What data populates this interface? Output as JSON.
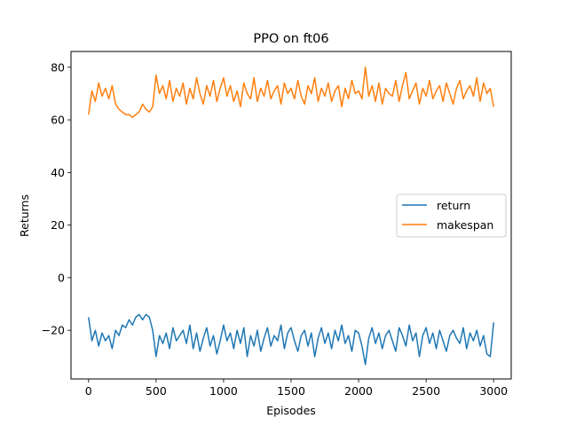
{
  "chart_data": {
    "type": "line",
    "title": "PPO on ft06",
    "xlabel": "Episodes",
    "ylabel": "Returns",
    "xlim": [
      -130,
      3130
    ],
    "ylim": [
      -38.5,
      86
    ],
    "xticks": [
      0,
      500,
      1000,
      1500,
      2000,
      2500,
      3000
    ],
    "yticks": [
      -20,
      0,
      20,
      40,
      60,
      80
    ],
    "grid": false,
    "legend": "center-right",
    "series": [
      {
        "name": "return",
        "color": "#1f77b4",
        "x": [
          0,
          25,
          50,
          75,
          100,
          125,
          150,
          175,
          200,
          225,
          250,
          275,
          300,
          325,
          350,
          375,
          400,
          425,
          450,
          475,
          500,
          525,
          550,
          575,
          600,
          625,
          650,
          675,
          700,
          725,
          750,
          775,
          800,
          825,
          850,
          875,
          900,
          925,
          950,
          975,
          1000,
          1025,
          1050,
          1075,
          1100,
          1125,
          1150,
          1175,
          1200,
          1225,
          1250,
          1275,
          1300,
          1325,
          1350,
          1375,
          1400,
          1425,
          1450,
          1475,
          1500,
          1525,
          1550,
          1575,
          1600,
          1625,
          1650,
          1675,
          1700,
          1725,
          1750,
          1775,
          1800,
          1825,
          1850,
          1875,
          1900,
          1925,
          1950,
          1975,
          2000,
          2025,
          2050,
          2075,
          2100,
          2125,
          2150,
          2175,
          2200,
          2225,
          2250,
          2275,
          2300,
          2325,
          2350,
          2375,
          2400,
          2425,
          2450,
          2475,
          2500,
          2525,
          2550,
          2575,
          2600,
          2625,
          2650,
          2675,
          2700,
          2725,
          2750,
          2775,
          2800,
          2825,
          2850,
          2875,
          2900,
          2925,
          2950,
          2975,
          3000
        ],
        "values": [
          -15,
          -24,
          -20,
          -26,
          -21,
          -24,
          -22,
          -27,
          -20,
          -22,
          -18,
          -19,
          -16,
          -18,
          -15,
          -14,
          -16,
          -14,
          -15,
          -20,
          -30,
          -22,
          -25,
          -21,
          -27,
          -19,
          -24,
          -22,
          -20,
          -25,
          -18,
          -27,
          -21,
          -28,
          -23,
          -19,
          -26,
          -22,
          -29,
          -24,
          -18,
          -24,
          -21,
          -27,
          -20,
          -25,
          -19,
          -30,
          -22,
          -26,
          -20,
          -28,
          -23,
          -19,
          -26,
          -22,
          -24,
          -18,
          -27,
          -21,
          -19,
          -24,
          -28,
          -22,
          -20,
          -26,
          -21,
          -30,
          -23,
          -19,
          -25,
          -21,
          -27,
          -20,
          -24,
          -18,
          -25,
          -22,
          -28,
          -20,
          -21,
          -26,
          -33,
          -23,
          -19,
          -25,
          -21,
          -27,
          -22,
          -20,
          -24,
          -28,
          -19,
          -22,
          -26,
          -18,
          -24,
          -21,
          -30,
          -22,
          -19,
          -25,
          -21,
          -27,
          -20,
          -24,
          -28,
          -22,
          -20,
          -23,
          -25,
          -19,
          -27,
          -21,
          -24,
          -20,
          -26,
          -22,
          -29,
          -30,
          -17
        ]
      },
      {
        "name": "makespan",
        "color": "#ff7f0e",
        "x": [
          0,
          25,
          50,
          75,
          100,
          125,
          150,
          175,
          200,
          225,
          250,
          275,
          300,
          325,
          350,
          375,
          400,
          425,
          450,
          475,
          500,
          525,
          550,
          575,
          600,
          625,
          650,
          675,
          700,
          725,
          750,
          775,
          800,
          825,
          850,
          875,
          900,
          925,
          950,
          975,
          1000,
          1025,
          1050,
          1075,
          1100,
          1125,
          1150,
          1175,
          1200,
          1225,
          1250,
          1275,
          1300,
          1325,
          1350,
          1375,
          1400,
          1425,
          1450,
          1475,
          1500,
          1525,
          1550,
          1575,
          1600,
          1625,
          1650,
          1675,
          1700,
          1725,
          1750,
          1775,
          1800,
          1825,
          1850,
          1875,
          1900,
          1925,
          1950,
          1975,
          2000,
          2025,
          2050,
          2075,
          2100,
          2125,
          2150,
          2175,
          2200,
          2225,
          2250,
          2275,
          2300,
          2325,
          2350,
          2375,
          2400,
          2425,
          2450,
          2475,
          2500,
          2525,
          2550,
          2575,
          2600,
          2625,
          2650,
          2675,
          2700,
          2725,
          2750,
          2775,
          2800,
          2825,
          2850,
          2875,
          2900,
          2925,
          2950,
          2975,
          3000
        ],
        "values": [
          62,
          71,
          67,
          74,
          69,
          72,
          68,
          73,
          66,
          64,
          63,
          62,
          62,
          61,
          62,
          63,
          66,
          64,
          63,
          65,
          77,
          70,
          73,
          68,
          75,
          67,
          72,
          69,
          74,
          66,
          72,
          68,
          76,
          70,
          66,
          73,
          69,
          75,
          67,
          72,
          76,
          69,
          73,
          67,
          71,
          65,
          74,
          70,
          68,
          76,
          67,
          72,
          69,
          75,
          68,
          71,
          73,
          66,
          74,
          70,
          72,
          68,
          75,
          69,
          66,
          73,
          70,
          76,
          67,
          72,
          69,
          74,
          67,
          71,
          73,
          65,
          72,
          68,
          75,
          70,
          71,
          68,
          80,
          69,
          73,
          67,
          74,
          66,
          72,
          70,
          69,
          75,
          67,
          73,
          78,
          68,
          71,
          74,
          66,
          72,
          69,
          75,
          68,
          71,
          73,
          67,
          74,
          70,
          66,
          72,
          75,
          68,
          71,
          73,
          69,
          76,
          67,
          74,
          70,
          72,
          65
        ]
      }
    ]
  }
}
